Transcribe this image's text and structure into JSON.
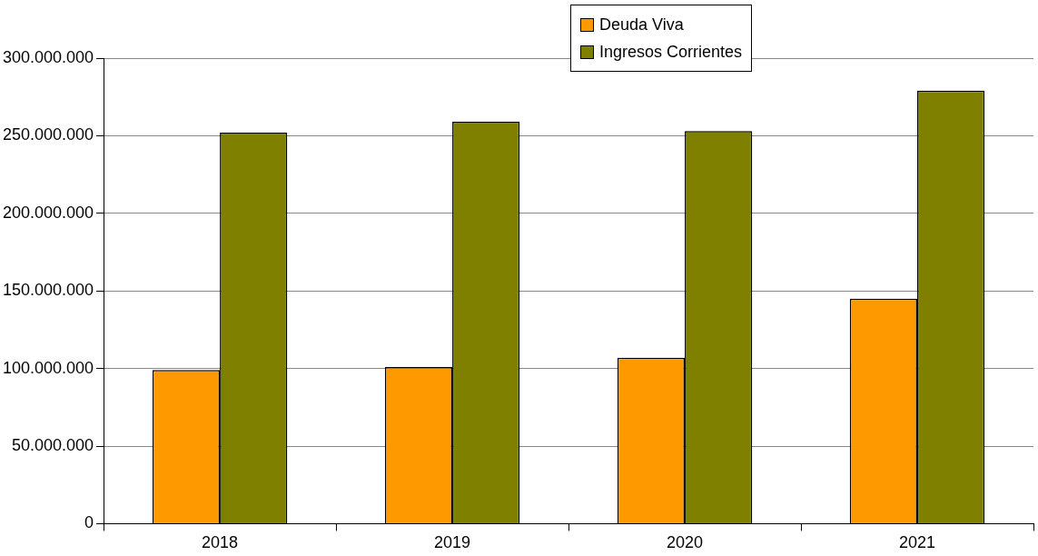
{
  "chart_data": {
    "type": "bar",
    "categories": [
      "2018",
      "2019",
      "2020",
      "2021"
    ],
    "series": [
      {
        "name": "Deuda Viva",
        "color": "#ff9900",
        "values": [
          99000000,
          101000000,
          107000000,
          145000000
        ]
      },
      {
        "name": "Ingresos Corrientes",
        "color": "#808000",
        "values": [
          252000000,
          259000000,
          253000000,
          279000000
        ]
      }
    ],
    "ylim": [
      0,
      300000000
    ],
    "yticks": [
      0,
      {
        "value": 50000000,
        "label": "50.000.000"
      },
      {
        "value": 100000000,
        "label": "100.000.000"
      },
      {
        "value": 150000000,
        "label": "150.000.000"
      },
      {
        "value": 200000000,
        "label": "200.000.000"
      },
      {
        "value": 250000000,
        "label": "250.000.000"
      },
      {
        "value": 300000000,
        "label": "300.000.000"
      }
    ],
    "grid": "y",
    "legend": "top right"
  }
}
